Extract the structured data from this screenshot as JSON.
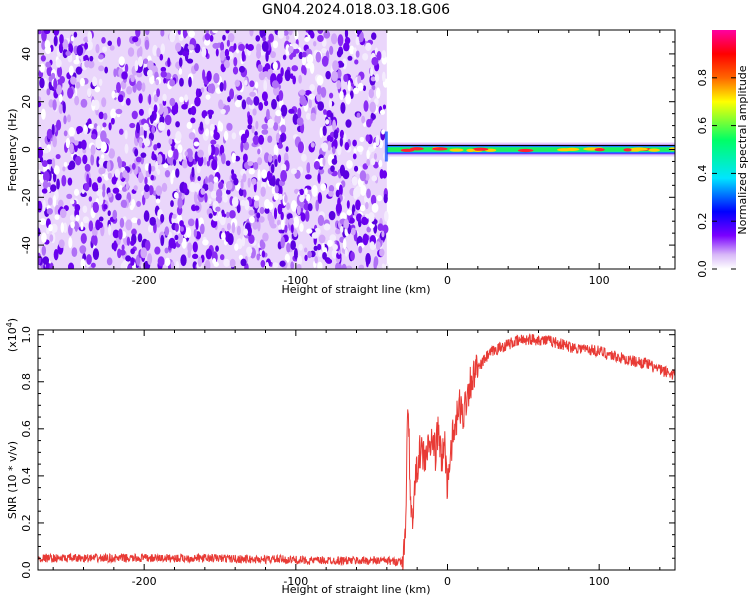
{
  "title": "GN04.2024.018.03.18.G06",
  "spectrogram": {
    "xlabel": "Height of straight line (km)",
    "ylabel": "Frequency (Hz)",
    "xlim": [
      -270,
      150
    ],
    "ylim": [
      -50,
      50
    ],
    "xticks": [
      -200,
      -100,
      0,
      100
    ],
    "yticks": [
      -40,
      -20,
      0,
      20,
      40
    ],
    "noise_region_end_km": -40,
    "signal_frequency_hz": 0,
    "colorbar": {
      "label": "Normalized spectral amplitude",
      "ticks": [
        0.0,
        0.2,
        0.4,
        0.6,
        0.8
      ],
      "range": [
        0,
        1
      ],
      "colormap": [
        "#ffffff",
        "#d8b8f8",
        "#7a00ff",
        "#0000ff",
        "#00e5ff",
        "#00ff66",
        "#ffff00",
        "#ff6600",
        "#ff0000",
        "#ff00a0"
      ]
    }
  },
  "chart_data": {
    "type": "line",
    "xlabel": "Height of straight line (km)",
    "ylabel": "SNR (10 * v/v)",
    "y_scale_label": "(x10",
    "y_scale_exp": "4",
    "y_scale_tail": ")",
    "xlim": [
      -270,
      150
    ],
    "ylim": [
      0,
      1.02
    ],
    "xticks": [
      -200,
      -100,
      0,
      100
    ],
    "yticks": [
      0.0,
      0.2,
      0.4,
      0.6,
      0.8,
      1.0
    ],
    "color": "#e83a35",
    "x": [
      -270,
      -250,
      -230,
      -210,
      -190,
      -170,
      -150,
      -130,
      -110,
      -90,
      -70,
      -50,
      -40,
      -35,
      -30,
      -28,
      -26,
      -24,
      -22,
      -20,
      -18,
      -15,
      -12,
      -10,
      -8,
      -6,
      -4,
      -2,
      0,
      2,
      5,
      8,
      10,
      12,
      15,
      20,
      25,
      30,
      40,
      50,
      60,
      70,
      80,
      90,
      100,
      110,
      120,
      130,
      140,
      150
    ],
    "y": [
      0.05,
      0.05,
      0.05,
      0.05,
      0.05,
      0.05,
      0.05,
      0.045,
      0.045,
      0.04,
      0.04,
      0.04,
      0.04,
      0.035,
      0.04,
      0.1,
      0.73,
      0.2,
      0.3,
      0.45,
      0.5,
      0.48,
      0.52,
      0.55,
      0.5,
      0.6,
      0.45,
      0.55,
      0.35,
      0.52,
      0.6,
      0.7,
      0.65,
      0.72,
      0.8,
      0.85,
      0.9,
      0.93,
      0.96,
      0.98,
      0.98,
      0.97,
      0.95,
      0.94,
      0.93,
      0.91,
      0.89,
      0.88,
      0.85,
      0.83
    ]
  }
}
